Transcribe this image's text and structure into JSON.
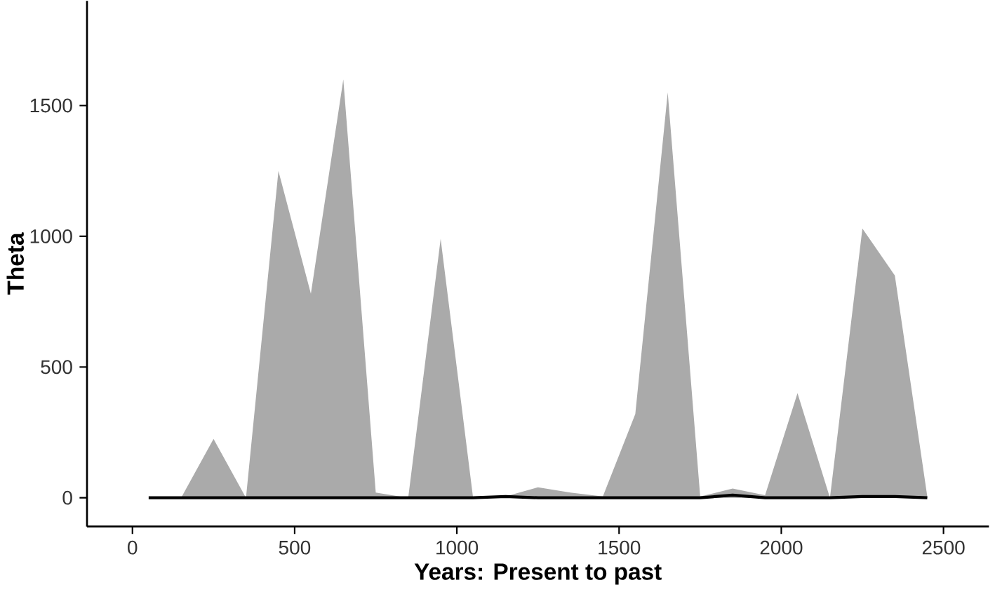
{
  "chart_data": {
    "type": "area",
    "xlabel": "Years: Present to past",
    "ylabel": "Theta",
    "x": [
      50,
      150,
      250,
      350,
      450,
      550,
      650,
      750,
      850,
      950,
      1050,
      1150,
      1250,
      1350,
      1450,
      1550,
      1650,
      1750,
      1850,
      1950,
      2050,
      2150,
      2250,
      2350,
      2450
    ],
    "series": [
      {
        "color": "#aaaaaa",
        "values": [
          0,
          0,
          225,
          0,
          1250,
          780,
          1600,
          20,
          0,
          990,
          0,
          5,
          40,
          20,
          5,
          320,
          1550,
          5,
          35,
          10,
          400,
          0,
          1030,
          850,
          5
        ]
      },
      {
        "type": "line",
        "color": "#000000",
        "values": [
          0,
          0,
          0,
          0,
          0,
          0,
          0,
          0,
          0,
          0,
          0,
          5,
          0,
          0,
          0,
          0,
          0,
          0,
          10,
          0,
          0,
          0,
          5,
          5,
          0
        ]
      }
    ],
    "xlim": [
      -140,
      2640
    ],
    "ylim": [
      -110,
      1900
    ],
    "xticks": [
      0,
      500,
      1000,
      1500,
      2000,
      2500
    ],
    "yticks": [
      0,
      500,
      1000,
      1500
    ]
  }
}
